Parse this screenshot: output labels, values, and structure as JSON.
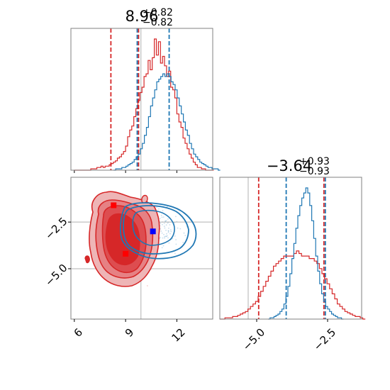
{
  "colors": {
    "red": "#d62728",
    "blue": "#1f77b4",
    "grid": "#b0b0b0",
    "axis": "#808080"
  },
  "chart_data": [
    {
      "type": "histogram",
      "panel": "x-marginal",
      "title": {
        "value": "8.96",
        "plus": "+0.82",
        "minus": "−0.82"
      },
      "xlim": [
        5.8,
        14.1
      ],
      "grid": true,
      "truth_line": 9.9,
      "series": [
        {
          "color": "red",
          "quantiles": [
            8.14,
            9.76
          ],
          "bin_start": 6.0,
          "bin_width": 0.12,
          "counts": [
            0,
            0,
            0,
            0,
            0,
            0,
            0,
            0,
            1,
            1,
            1,
            2,
            2,
            3,
            2,
            3,
            3,
            4,
            5,
            6,
            7,
            9,
            10,
            12,
            14,
            18,
            25,
            30,
            33,
            40,
            46,
            52,
            58,
            62,
            70,
            72,
            82,
            75,
            84,
            98,
            86,
            96,
            80,
            85,
            78,
            70,
            74,
            62,
            60,
            54,
            42,
            36,
            32,
            24,
            20,
            16,
            12,
            9,
            6,
            4,
            2,
            2,
            1,
            1,
            0,
            0,
            0,
            0
          ]
        },
        {
          "color": "blue",
          "quantiles": [
            9.68,
            11.55
          ],
          "bin_start": 8.3,
          "bin_width": 0.12,
          "counts": [
            0,
            1,
            1,
            1,
            2,
            2,
            3,
            4,
            5,
            6,
            8,
            10,
            12,
            16,
            20,
            26,
            32,
            40,
            48,
            54,
            60,
            66,
            68,
            70,
            72,
            70,
            72,
            70,
            66,
            64,
            60,
            54,
            48,
            42,
            36,
            30,
            26,
            20,
            16,
            12,
            10,
            8,
            6,
            5,
            4,
            3,
            2,
            2,
            1,
            1,
            1,
            0
          ]
        }
      ]
    },
    {
      "type": "histogram",
      "panel": "y-marginal",
      "title": {
        "value": "−3.64",
        "plus": "+0.93",
        "minus": "−0.93"
      },
      "xlim": [
        -6.3,
        -1.3
      ],
      "xticks": [
        "−5.0",
        "−2.5"
      ],
      "xtick_values": [
        -5.0,
        -2.5
      ],
      "grid": true,
      "truth_line": -5.3,
      "series": [
        {
          "color": "red",
          "quantiles": [
            -4.93,
            -2.63
          ],
          "bin_start": -6.3,
          "bin_width": 0.09,
          "counts": [
            0,
            0,
            1,
            1,
            1,
            2,
            2,
            3,
            4,
            5,
            6,
            8,
            10,
            12,
            14,
            18,
            22,
            26,
            30,
            34,
            38,
            42,
            44,
            46,
            48,
            50,
            50,
            50,
            50,
            52,
            54,
            52,
            50,
            50,
            50,
            48,
            48,
            46,
            44,
            40,
            36,
            32,
            28,
            24,
            20,
            16,
            12,
            10,
            8,
            6,
            5,
            4,
            3,
            2,
            2,
            1,
            0
          ]
        },
        {
          "color": "blue",
          "quantiles": [
            -3.96,
            -2.58
          ],
          "bin_start": -4.6,
          "bin_width": 0.07,
          "counts": [
            0,
            1,
            1,
            2,
            3,
            4,
            6,
            8,
            12,
            18,
            26,
            36,
            48,
            60,
            72,
            82,
            90,
            96,
            100,
            104,
            100,
            90,
            78,
            64,
            50,
            38,
            28,
            20,
            14,
            10,
            8,
            6,
            4,
            3,
            2,
            1,
            1,
            0
          ]
        }
      ]
    },
    {
      "type": "contour",
      "panel": "joint",
      "xlim": [
        5.8,
        14.1
      ],
      "ylim": [
        -7.7,
        -0.1
      ],
      "xticks": [
        "6",
        "9",
        "12"
      ],
      "xtick_values": [
        6,
        9,
        12
      ],
      "yticks": [
        "−2.5",
        "−5.0"
      ],
      "ytick_values": [
        -2.5,
        -5.0
      ],
      "grid": true,
      "grid_x": 9.9,
      "grid_y": -2.5,
      "red_markers": [
        {
          "x": 8.3,
          "y": -1.6
        },
        {
          "x": 9.0,
          "y": -4.2
        }
      ],
      "blue_markers": [
        {
          "x": 10.6,
          "y": -3.0
        }
      ],
      "red_center": {
        "x": 9.0,
        "y": -3.8
      },
      "blue_center": {
        "x": 11.0,
        "y": -3.0
      }
    }
  ]
}
